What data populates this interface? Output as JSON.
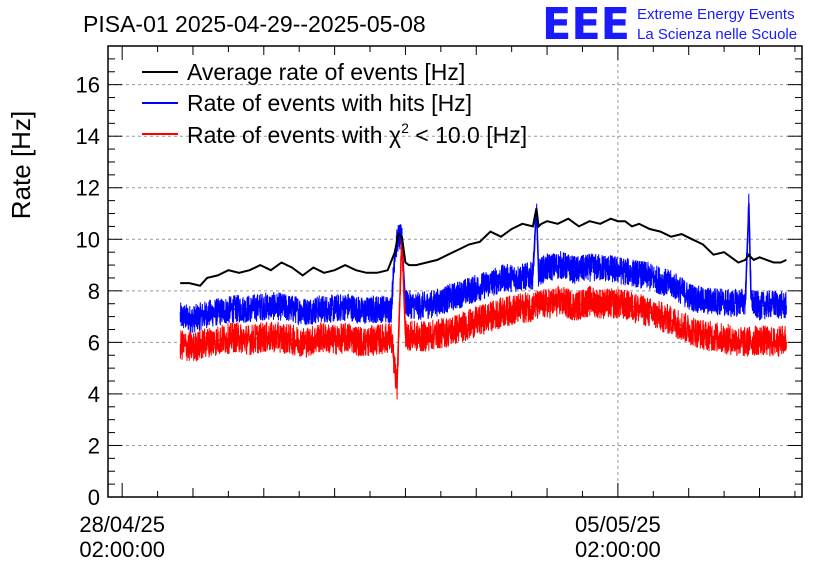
{
  "chart_data": {
    "type": "line",
    "title": "PISA-01 2025-04-29--2025-05-08",
    "ylabel": "Rate [Hz]",
    "xlabel": "",
    "ylim": [
      0,
      17.5
    ],
    "xlim_days": [
      -0.2,
      9.6
    ],
    "grid": true,
    "legend_position": "top-left",
    "y_ticks": [
      "0",
      "2",
      "4",
      "6",
      "8",
      "10",
      "12",
      "14",
      "16"
    ],
    "x_ticks": [
      {
        "day": 0,
        "date": "28/04/25",
        "time": "02:00:00"
      },
      {
        "day": 7,
        "date": "05/05/25",
        "time": "02:00:00"
      }
    ],
    "legend": {
      "average": "Average rate of events [Hz]",
      "hits": "Rate of events with hits [Hz]",
      "chi2_prefix": "Rate of events with ",
      "chi2_symbol": "χ",
      "chi2_sup": "2",
      "chi2_suffix": " < 10.0 [Hz]"
    },
    "colors": {
      "average": "#000000",
      "hits": "#0000ff",
      "chi2": "#ff0000",
      "logo": "#1a1aff"
    },
    "series": [
      {
        "name": "Average rate of events [Hz]",
        "key": "average",
        "x": [
          0.82,
          0.95,
          1.1,
          1.2,
          1.35,
          1.5,
          1.65,
          1.8,
          1.95,
          2.1,
          2.25,
          2.4,
          2.55,
          2.7,
          2.85,
          3.0,
          3.15,
          3.3,
          3.45,
          3.6,
          3.75,
          3.85,
          3.9,
          3.95,
          4.0,
          4.05,
          4.15,
          4.3,
          4.45,
          4.6,
          4.75,
          4.9,
          5.05,
          5.2,
          5.35,
          5.5,
          5.65,
          5.8,
          5.85,
          5.88,
          5.92,
          6.0,
          6.15,
          6.3,
          6.45,
          6.6,
          6.75,
          6.9,
          7.0,
          7.1,
          7.2,
          7.3,
          7.45,
          7.6,
          7.75,
          7.9,
          8.05,
          8.2,
          8.35,
          8.5,
          8.6,
          8.7,
          8.8,
          8.85,
          8.88,
          8.92,
          9.0,
          9.1,
          9.2,
          9.3,
          9.38
        ],
        "y": [
          8.3,
          8.3,
          8.2,
          8.5,
          8.6,
          8.8,
          8.7,
          8.8,
          9.0,
          8.8,
          9.1,
          8.9,
          8.6,
          8.9,
          8.7,
          8.8,
          9.0,
          8.8,
          8.7,
          8.7,
          8.8,
          9.5,
          10.2,
          10.1,
          9.1,
          9.0,
          9.0,
          9.1,
          9.2,
          9.4,
          9.6,
          9.8,
          9.9,
          10.3,
          10.1,
          10.4,
          10.6,
          10.5,
          11.2,
          10.5,
          10.6,
          10.7,
          10.6,
          10.8,
          10.5,
          10.7,
          10.6,
          10.8,
          10.7,
          10.7,
          10.5,
          10.6,
          10.4,
          10.3,
          10.1,
          10.2,
          10.0,
          9.8,
          9.4,
          9.5,
          9.3,
          9.1,
          9.2,
          9.4,
          9.3,
          9.2,
          9.3,
          9.2,
          9.1,
          9.1,
          9.2
        ]
      },
      {
        "name": "Rate of events with hits [Hz]",
        "key": "hits",
        "x": [
          0.82,
          1.0,
          1.2,
          1.4,
          1.6,
          1.8,
          2.0,
          2.2,
          2.4,
          2.6,
          2.8,
          3.0,
          3.2,
          3.4,
          3.6,
          3.8,
          3.85,
          3.9,
          3.95,
          4.0,
          4.2,
          4.4,
          4.6,
          4.8,
          5.0,
          5.2,
          5.4,
          5.6,
          5.8,
          5.85,
          5.88,
          5.92,
          6.0,
          6.2,
          6.4,
          6.6,
          6.8,
          7.0,
          7.2,
          7.4,
          7.6,
          7.8,
          8.0,
          8.2,
          8.4,
          8.6,
          8.8,
          8.85,
          8.88,
          8.92,
          9.0,
          9.2,
          9.38
        ],
        "y": [
          7.0,
          6.9,
          7.1,
          7.2,
          7.3,
          7.3,
          7.4,
          7.4,
          7.3,
          7.2,
          7.3,
          7.3,
          7.4,
          7.2,
          7.3,
          7.3,
          9.5,
          10.1,
          10.0,
          7.5,
          7.4,
          7.5,
          7.7,
          7.9,
          8.1,
          8.3,
          8.5,
          8.5,
          8.6,
          11.2,
          8.7,
          8.8,
          8.9,
          9.0,
          8.8,
          8.9,
          8.9,
          8.8,
          8.7,
          8.6,
          8.4,
          8.2,
          7.8,
          7.6,
          7.6,
          7.5,
          7.6,
          11.4,
          7.7,
          7.5,
          7.4,
          7.5,
          7.4
        ],
        "noise": 0.55
      },
      {
        "name": "Rate of events with χ2 < 10.0 [Hz]",
        "key": "chi2",
        "x": [
          0.82,
          1.0,
          1.2,
          1.4,
          1.6,
          1.8,
          2.0,
          2.2,
          2.4,
          2.6,
          2.8,
          3.0,
          3.2,
          3.4,
          3.6,
          3.8,
          3.88,
          3.95,
          4.0,
          4.2,
          4.4,
          4.6,
          4.8,
          5.0,
          5.2,
          5.4,
          5.6,
          5.8,
          6.0,
          6.2,
          6.4,
          6.6,
          6.8,
          7.0,
          7.2,
          7.4,
          7.6,
          7.8,
          8.0,
          8.2,
          8.4,
          8.6,
          8.8,
          9.0,
          9.2,
          9.38
        ],
        "y": [
          5.9,
          5.8,
          6.0,
          6.1,
          6.2,
          6.1,
          6.2,
          6.2,
          6.1,
          6.0,
          6.2,
          6.1,
          6.2,
          6.0,
          6.1,
          6.2,
          4.2,
          10.1,
          6.3,
          6.2,
          6.3,
          6.4,
          6.6,
          6.8,
          7.0,
          7.2,
          7.3,
          7.4,
          7.5,
          7.6,
          7.4,
          7.6,
          7.5,
          7.5,
          7.4,
          7.2,
          7.0,
          6.8,
          6.5,
          6.3,
          6.2,
          6.1,
          6.0,
          6.1,
          6.0,
          6.1
        ],
        "noise": 0.6
      }
    ]
  },
  "logo": {
    "letters": "EEE",
    "line1": "Extreme Energy Events",
    "line2": "La Scienza nelle Scuole"
  }
}
